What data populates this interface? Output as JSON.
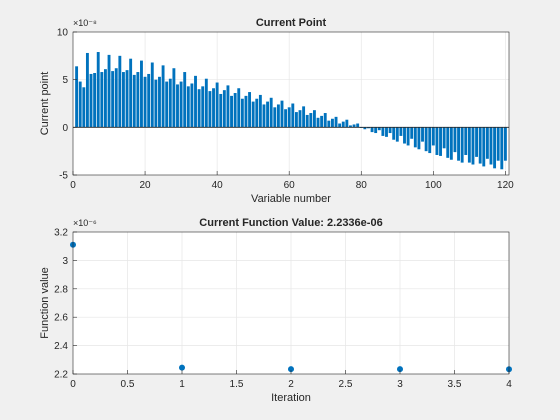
{
  "chart_data": [
    {
      "type": "bar",
      "title": "Current Point",
      "xlabel": "Variable number",
      "ylabel": "Current point",
      "exponent_label": "×10⁻⁸",
      "xlim": [
        0,
        121
      ],
      "ylim": [
        -5,
        10
      ],
      "xticks": [
        0,
        20,
        40,
        60,
        80,
        100,
        120
      ],
      "yticks": [
        -5,
        0,
        5,
        10
      ],
      "grid": true,
      "color": "#0072bd",
      "x": [
        1,
        2,
        3,
        4,
        5,
        6,
        7,
        8,
        9,
        10,
        11,
        12,
        13,
        14,
        15,
        16,
        17,
        18,
        19,
        20,
        21,
        22,
        23,
        24,
        25,
        26,
        27,
        28,
        29,
        30,
        31,
        32,
        33,
        34,
        35,
        36,
        37,
        38,
        39,
        40,
        41,
        42,
        43,
        44,
        45,
        46,
        47,
        48,
        49,
        50,
        51,
        52,
        53,
        54,
        55,
        56,
        57,
        58,
        59,
        60,
        61,
        62,
        63,
        64,
        65,
        66,
        67,
        68,
        69,
        70,
        71,
        72,
        73,
        74,
        75,
        76,
        77,
        78,
        79,
        80,
        81,
        82,
        83,
        84,
        85,
        86,
        87,
        88,
        89,
        90,
        91,
        92,
        93,
        94,
        95,
        96,
        97,
        98,
        99,
        100,
        101,
        102,
        103,
        104,
        105,
        106,
        107,
        108,
        109,
        110,
        111,
        112,
        113,
        114,
        115,
        116,
        117,
        118,
        119,
        120
      ],
      "values": [
        6.4,
        4.8,
        4.2,
        7.8,
        5.6,
        5.7,
        7.9,
        5.8,
        6.1,
        7.6,
        5.9,
        6.2,
        7.5,
        5.8,
        6.0,
        7.2,
        5.5,
        5.8,
        7.0,
        5.3,
        5.6,
        6.8,
        5.0,
        5.3,
        6.5,
        4.8,
        5.1,
        6.2,
        4.5,
        4.8,
        5.8,
        4.3,
        4.6,
        5.4,
        4.0,
        4.3,
        5.1,
        3.8,
        4.1,
        4.7,
        3.5,
        3.9,
        4.4,
        3.3,
        3.6,
        4.1,
        3.0,
        3.3,
        3.7,
        2.7,
        3.0,
        3.4,
        2.4,
        2.7,
        3.1,
        2.1,
        2.4,
        2.8,
        1.9,
        2.1,
        2.5,
        1.6,
        1.8,
        2.2,
        1.3,
        1.5,
        1.8,
        1.0,
        1.2,
        1.5,
        0.7,
        0.9,
        1.1,
        0.4,
        0.6,
        0.8,
        0.2,
        0.3,
        0.4,
        0.0,
        -0.2,
        -0.1,
        -0.5,
        -0.6,
        -0.3,
        -0.9,
        -1.0,
        -0.6,
        -1.3,
        -1.5,
        -0.9,
        -1.7,
        -1.9,
        -1.2,
        -2.1,
        -2.3,
        -1.5,
        -2.5,
        -2.7,
        -1.9,
        -2.9,
        -3.0,
        -2.2,
        -3.2,
        -3.4,
        -2.6,
        -3.5,
        -3.7,
        -2.9,
        -3.7,
        -3.9,
        -3.1,
        -3.8,
        -4.1,
        -3.3,
        -3.9,
        -4.3,
        -3.5,
        -4.4,
        -3.5
      ]
    },
    {
      "type": "scatter",
      "title": "Current Function Value: 2.2336e-06",
      "xlabel": "Iteration",
      "ylabel": "Function value",
      "exponent_label": "×10⁻⁶",
      "xlim": [
        0,
        4
      ],
      "ylim": [
        2.2,
        3.2
      ],
      "xticks": [
        0,
        0.5,
        1,
        1.5,
        2,
        2.5,
        3,
        3.5,
        4
      ],
      "yticks": [
        2.2,
        2.4,
        2.6,
        2.8,
        3,
        3.2
      ],
      "grid": true,
      "color": "#0072bd",
      "x": [
        0,
        1,
        2,
        3,
        4
      ],
      "values": [
        3.11,
        2.245,
        2.234,
        2.234,
        2.2336
      ]
    }
  ]
}
